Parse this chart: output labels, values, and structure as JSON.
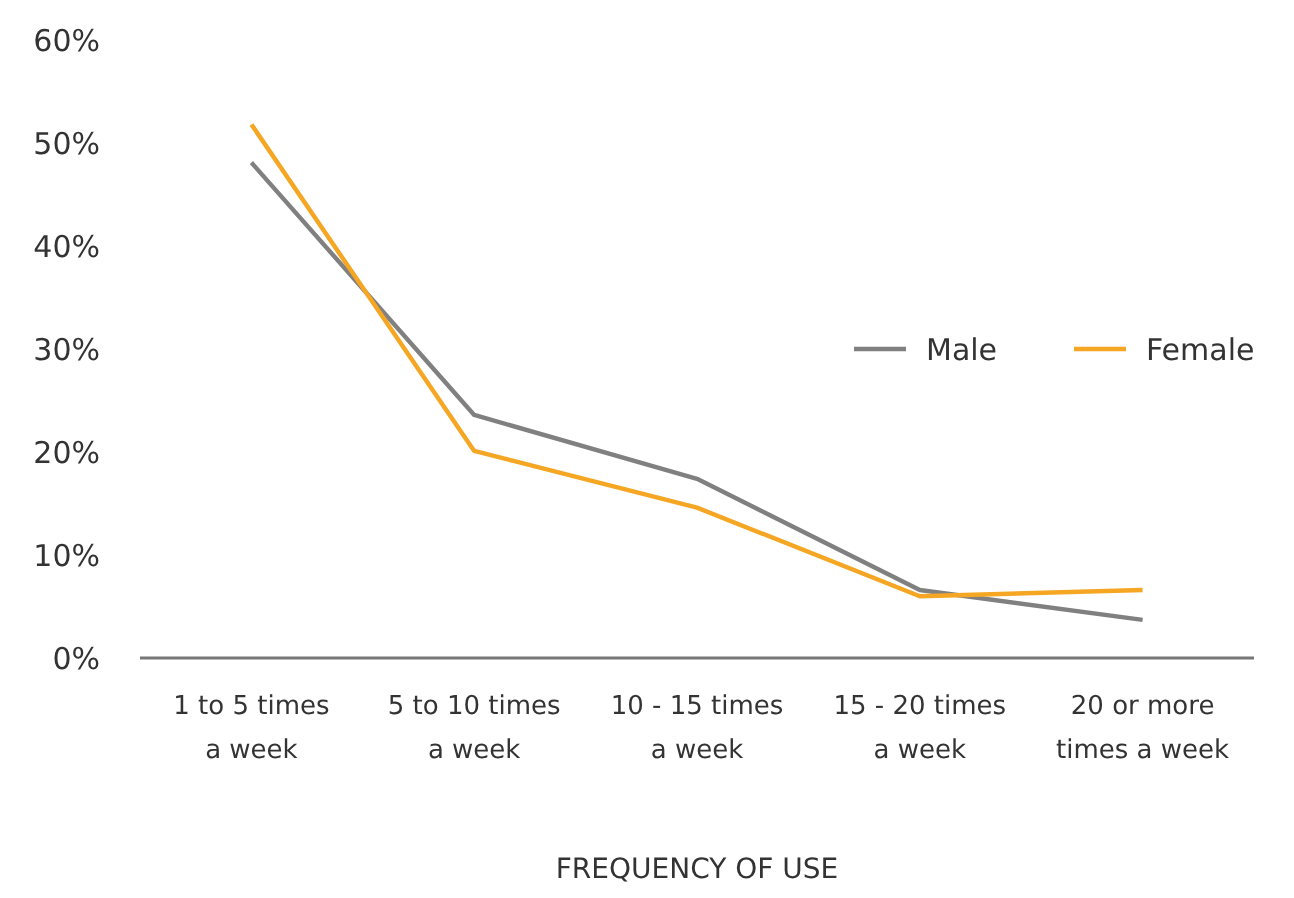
{
  "chart_data": {
    "type": "line",
    "xlabel": "FREQUENCY OF USE",
    "categories": [
      "1 to 5 times a week",
      "5 to 10 times a week",
      "10 - 15 times a week",
      "15 - 20 times a week",
      "20 or more times a week"
    ],
    "series": [
      {
        "name": "Male",
        "color": "#808080",
        "values": [
          48.1,
          23.6,
          17.4,
          6.6,
          3.7
        ]
      },
      {
        "name": "Female",
        "color": "#f5a623",
        "values": [
          51.8,
          20.1,
          14.6,
          6.0,
          6.6
        ]
      }
    ],
    "ylim": [
      0,
      60
    ],
    "yticks": [
      {
        "value": 0,
        "label": "0%"
      },
      {
        "value": 10,
        "label": "10%"
      },
      {
        "value": 20,
        "label": "20%"
      },
      {
        "value": 30,
        "label": "30%"
      },
      {
        "value": 40,
        "label": "40%"
      },
      {
        "value": 50,
        "label": "50%"
      },
      {
        "value": 60,
        "label": "60%"
      }
    ],
    "grid": false,
    "legend": "right",
    "marker": "none",
    "line_style": "solid"
  }
}
